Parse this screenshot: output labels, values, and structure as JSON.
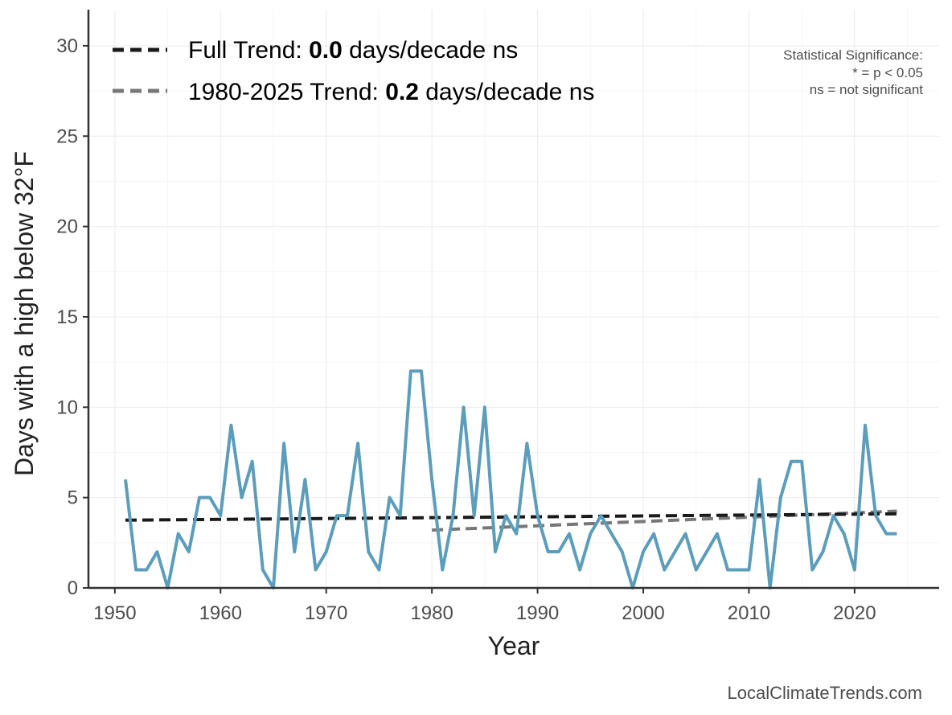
{
  "chart_data": {
    "type": "line",
    "xlabel": "Year",
    "ylabel": "Days with a high below 32°F",
    "xlim": [
      1947.5,
      2028
    ],
    "ylim": [
      0,
      32
    ],
    "xticks": [
      1950,
      1960,
      1970,
      1980,
      1990,
      2000,
      2010,
      2020
    ],
    "yticks": [
      0,
      5,
      10,
      15,
      20,
      25,
      30
    ],
    "grid": true,
    "legend_position": "top-left",
    "series": [
      {
        "color": "#5b9dbb",
        "x": [
          1951,
          1952,
          1953,
          1954,
          1955,
          1956,
          1957,
          1958,
          1959,
          1960,
          1961,
          1962,
          1963,
          1964,
          1965,
          1966,
          1967,
          1968,
          1969,
          1970,
          1971,
          1972,
          1973,
          1974,
          1975,
          1976,
          1977,
          1978,
          1979,
          1980,
          1981,
          1982,
          1983,
          1984,
          1985,
          1986,
          1987,
          1988,
          1989,
          1990,
          1991,
          1992,
          1993,
          1994,
          1995,
          1996,
          1997,
          1998,
          1999,
          2000,
          2001,
          2002,
          2003,
          2004,
          2005,
          2006,
          2007,
          2008,
          2009,
          2010,
          2011,
          2012,
          2013,
          2014,
          2015,
          2016,
          2017,
          2018,
          2019,
          2020,
          2021,
          2022,
          2023,
          2024
        ],
        "values": [
          6,
          1,
          1,
          2,
          0,
          3,
          2,
          5,
          5,
          4,
          9,
          5,
          7,
          1,
          0,
          8,
          2,
          6,
          1,
          2,
          4,
          4,
          8,
          2,
          1,
          5,
          4,
          12,
          12,
          6,
          1,
          4,
          10,
          4,
          10,
          2,
          4,
          3,
          8,
          4,
          2,
          2,
          3,
          1,
          3,
          4,
          3,
          2,
          0,
          2,
          3,
          1,
          2,
          3,
          1,
          2,
          3,
          1,
          1,
          1,
          6,
          0,
          5,
          7,
          7,
          1,
          2,
          4,
          3,
          1,
          9,
          4,
          3,
          3
        ]
      }
    ],
    "trends": [
      {
        "label_prefix": "Full Trend: ",
        "label_value": "0.0",
        "label_suffix": " days/decade ns",
        "color": "#1a1a1a",
        "x": [
          1951,
          2024
        ],
        "values": [
          3.75,
          4.1
        ]
      },
      {
        "label_prefix": "1980-2025 Trend: ",
        "label_value": "0.2",
        "label_suffix": " days/decade ns",
        "color": "#777777",
        "x": [
          1980,
          2024
        ],
        "values": [
          3.2,
          4.25
        ]
      }
    ],
    "significance_note": [
      "Statistical Significance:",
      "* = p < 0.05",
      "ns = not significant"
    ],
    "credit": "LocalClimateTrends.com"
  }
}
